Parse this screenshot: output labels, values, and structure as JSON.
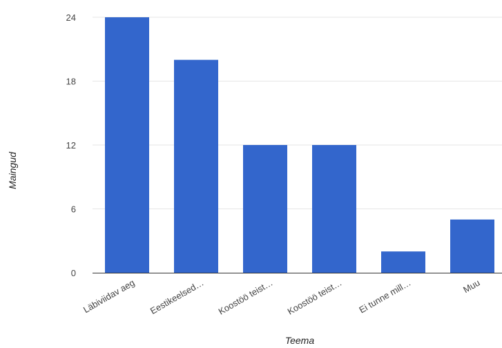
{
  "chart_data": {
    "type": "bar",
    "categories": [
      "Läbiviidav aeg",
      "Eestikeelsed…",
      "Koostöö teist…",
      "Koostöö teist…",
      "Ei tunne mill…",
      "Muu"
    ],
    "values": [
      24,
      20,
      12,
      12,
      2,
      5
    ],
    "xlabel": "Teema",
    "ylabel": "Maingud",
    "ylim": [
      0,
      24
    ],
    "yticks": [
      0,
      6,
      12,
      18,
      24
    ],
    "grid": true,
    "legend": "none",
    "bar_color": "#3366cc"
  }
}
